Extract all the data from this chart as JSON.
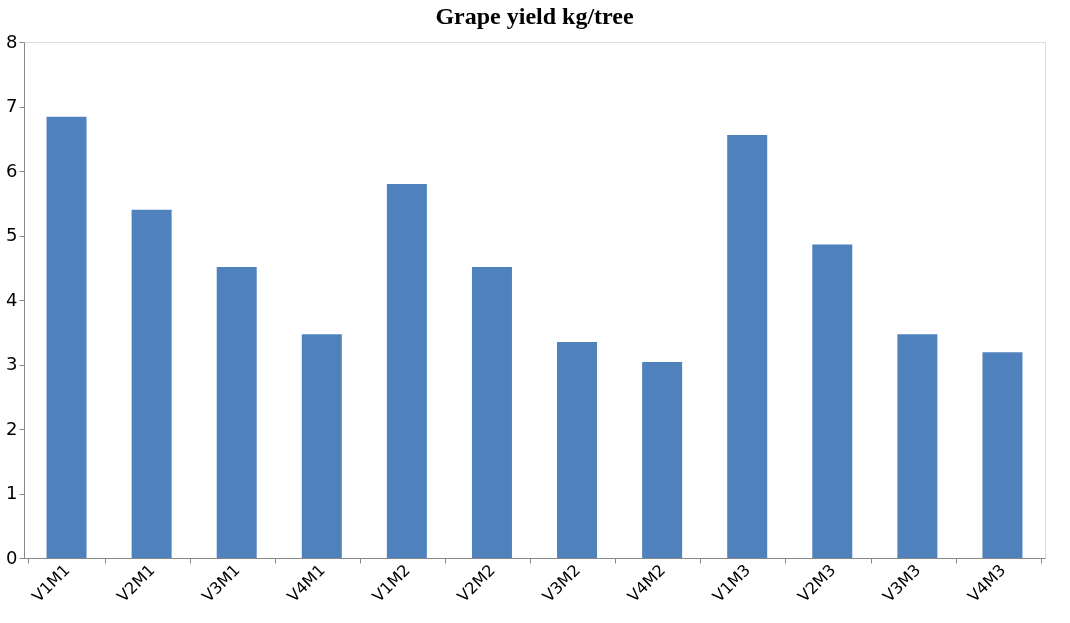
{
  "chart_data": {
    "type": "bar",
    "title": "Grape yield kg/tree",
    "categories": [
      "V1M1",
      "V2M1",
      "V3M1",
      "V4M1",
      "V1M2",
      "V2M2",
      "V3M2",
      "V4M2",
      "V1M3",
      "V2M3",
      "V3M3",
      "V4M3"
    ],
    "values": [
      6.84,
      5.4,
      4.51,
      3.47,
      5.8,
      4.51,
      3.35,
      3.04,
      6.56,
      4.86,
      3.47,
      3.19
    ],
    "color": "#4f81bd",
    "ylim": [
      0,
      8
    ],
    "yticks": [
      0,
      1,
      2,
      3,
      4,
      5,
      6,
      7,
      8
    ],
    "grid": false
  }
}
